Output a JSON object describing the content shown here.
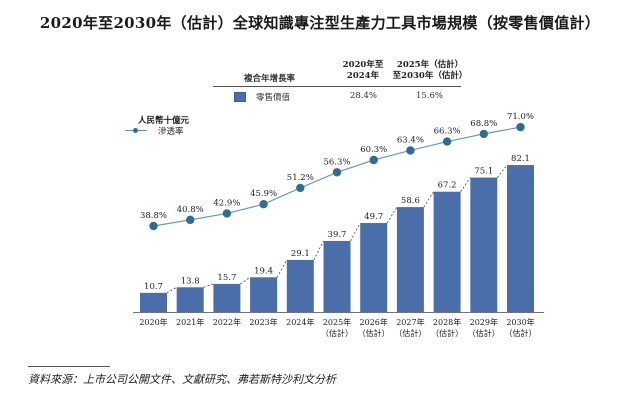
{
  "title": "2020年至2030年（估計）全球知識專注型生產力工具市場規模（按零售價值計）",
  "cagr_table": {
    "header_label": "複合年增長率",
    "col1_line1": "2020年至",
    "col1_line2": "2024年",
    "col2_line1": "2025年（估計）",
    "col2_line2": "至2030年（估計）",
    "row_label": "零售價值",
    "row_col1": "28.4%",
    "row_col2": "15.6%",
    "swatch_color": "#4a6ea9"
  },
  "legend": {
    "unit": "人民幣十億元",
    "line_label": "滲透率"
  },
  "source": "資料來源：上市公司公開文件、文獻研究、弗若斯特沙利文分析",
  "chart_data": {
    "type": "bar",
    "title": "2020年至2030年（估計）全球知識專注型生產力工具市場規模（按零售價值計）",
    "xlabel": "",
    "ylabel": "人民幣十億元",
    "categories": [
      [
        "2020年",
        ""
      ],
      [
        "2021年",
        ""
      ],
      [
        "2022年",
        ""
      ],
      [
        "2023年",
        ""
      ],
      [
        "2024年",
        ""
      ],
      [
        "2025年",
        "（估計）"
      ],
      [
        "2026年",
        "（估計）"
      ],
      [
        "2027年",
        "（估計）"
      ],
      [
        "2028年",
        "（估計）"
      ],
      [
        "2029年",
        "（估計）"
      ],
      [
        "2030年",
        "（估計）"
      ]
    ],
    "series": [
      {
        "name": "零售價值",
        "type": "bar",
        "color": "#4a6ea9",
        "values": [
          10.7,
          13.8,
          15.7,
          19.4,
          29.1,
          39.7,
          49.7,
          58.6,
          67.2,
          75.1,
          82.1
        ],
        "labels": [
          "10.7",
          "13.8",
          "15.7",
          "19.4",
          "29.1",
          "39.7",
          "49.7",
          "58.6",
          "67.2",
          "75.1",
          "82.1"
        ]
      },
      {
        "name": "滲透率",
        "type": "line",
        "color": "#2f6c94",
        "line_color": "#6a9db0",
        "values": [
          38.8,
          40.8,
          42.9,
          45.9,
          51.2,
          56.3,
          60.3,
          63.4,
          66.3,
          68.8,
          71.0
        ],
        "labels": [
          "38.8%",
          "40.8%",
          "42.9%",
          "45.9%",
          "51.2%",
          "56.3%",
          "60.3%",
          "63.4%",
          "66.3%",
          "68.8%",
          "71.0%"
        ]
      }
    ],
    "ylim": [
      0,
      90
    ],
    "y2lim": [
      0,
      100
    ],
    "grid": false,
    "legend": "top-left",
    "annotations": [
      "dashed connectors between consecutive bar tops"
    ]
  }
}
